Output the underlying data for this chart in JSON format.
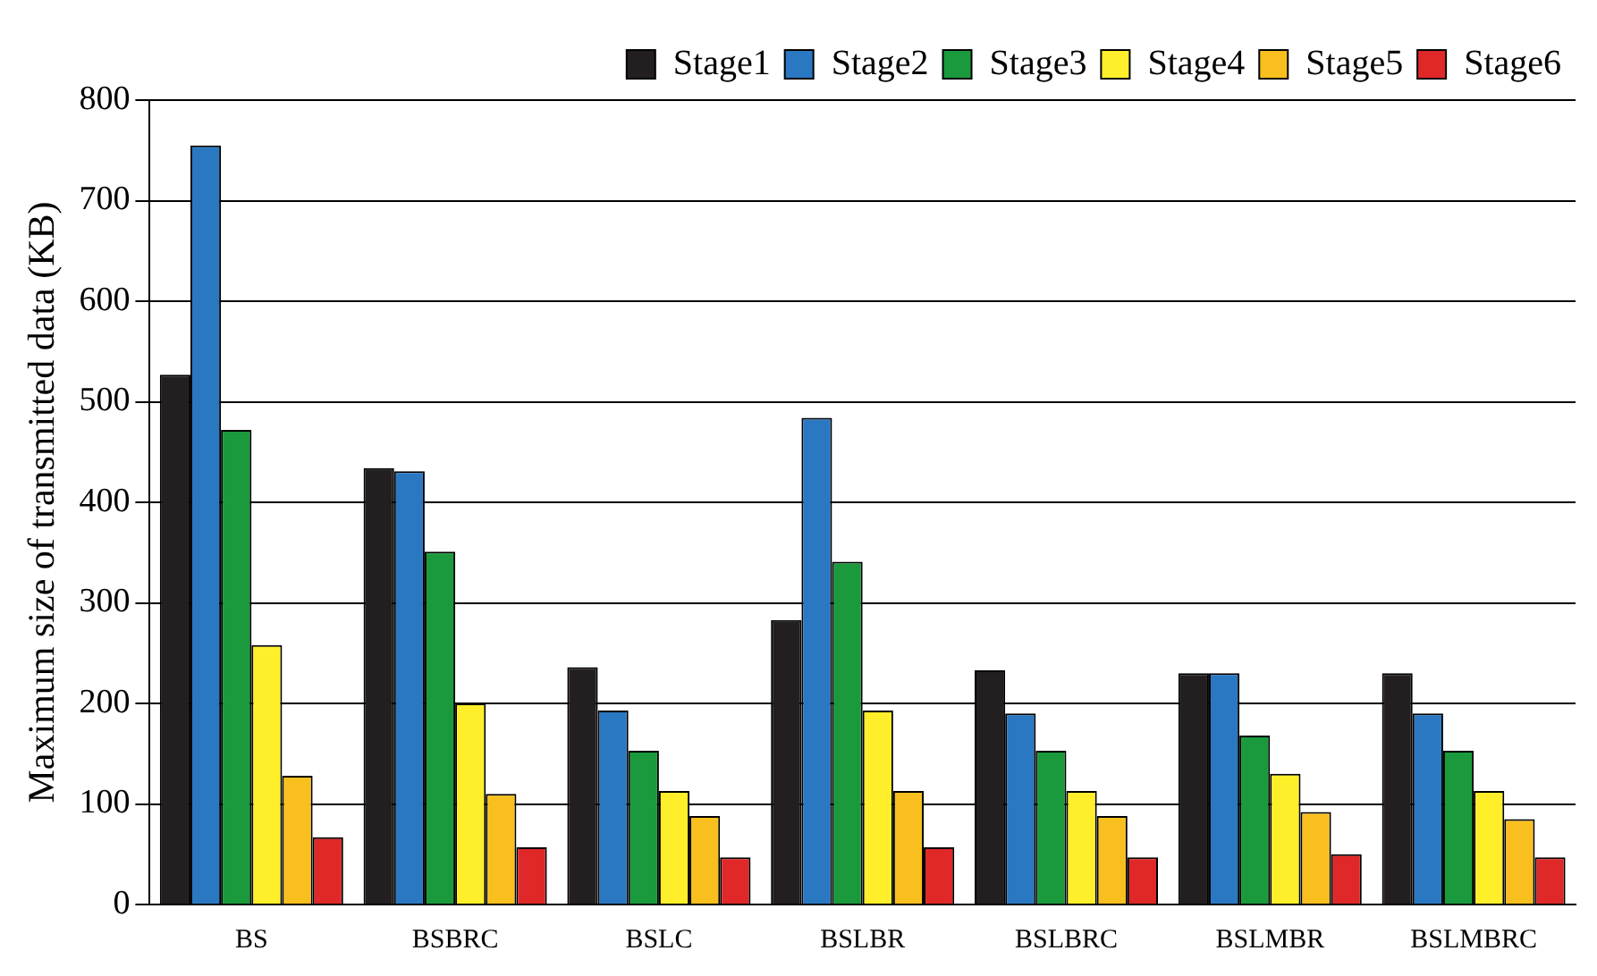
{
  "chart_data": {
    "type": "bar",
    "ylabel": "Maximum size of transmitted data (KB)",
    "categories": [
      "BS",
      "BSBRC",
      "BSLC",
      "BSLBR",
      "BSLBRC",
      "BSLMBR",
      "BSLMBRC"
    ],
    "series": [
      {
        "name": "Stage1",
        "color": "#231f20",
        "values": [
          527,
          434,
          236,
          283,
          233,
          230,
          230
        ]
      },
      {
        "name": "Stage2",
        "color": "#2b78c2",
        "values": [
          755,
          431,
          193,
          484,
          190,
          230,
          190
        ]
      },
      {
        "name": "Stage3",
        "color": "#1a9a3c",
        "values": [
          472,
          351,
          153,
          341,
          153,
          168,
          153
        ]
      },
      {
        "name": "Stage4",
        "color": "#ffef2a",
        "values": [
          258,
          200,
          113,
          193,
          113,
          130,
          113
        ]
      },
      {
        "name": "Stage5",
        "color": "#f8bf1e",
        "values": [
          128,
          110,
          88,
          113,
          88,
          92,
          85
        ]
      },
      {
        "name": "Stage6",
        "color": "#e02828",
        "values": [
          67,
          57,
          47,
          57,
          47,
          50,
          47
        ]
      }
    ],
    "ylim": [
      0,
      800
    ],
    "yticks": [
      0,
      100,
      200,
      300,
      400,
      500,
      600,
      700,
      800
    ],
    "grid": "y",
    "legend": "top right"
  }
}
